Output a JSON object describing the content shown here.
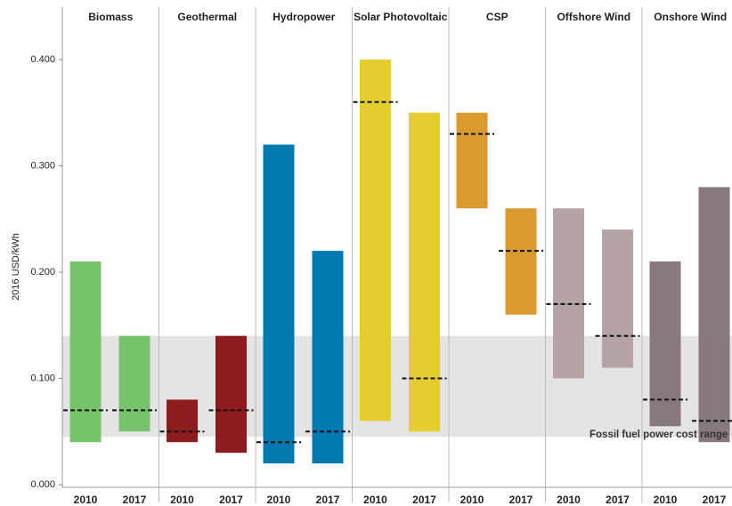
{
  "chart_data": {
    "type": "range_bar",
    "ylabel": "2016 USD/kWh",
    "ylim": [
      0,
      0.4
    ],
    "yticks": [
      {
        "value": 0,
        "label": "0.000"
      },
      {
        "value": 0.1,
        "label": "0.100"
      },
      {
        "value": 0.2,
        "label": "0.200"
      },
      {
        "value": 0.3,
        "label": "0.300"
      },
      {
        "value": 0.4,
        "label": "0.400"
      }
    ],
    "band": {
      "low": 0.045,
      "high": 0.14,
      "label": "Fossil fuel power cost range",
      "color": "#e4e4e4"
    },
    "groups": [
      {
        "name": "Biomass",
        "color": "#77c36a",
        "bars": [
          {
            "year": "2010",
            "low": 0.04,
            "high": 0.21,
            "avg": 0.07
          },
          {
            "year": "2017",
            "low": 0.05,
            "high": 0.14,
            "avg": 0.07
          }
        ]
      },
      {
        "name": "Geothermal",
        "color": "#8e1b1e",
        "bars": [
          {
            "year": "2010",
            "low": 0.04,
            "high": 0.08,
            "avg": 0.05
          },
          {
            "year": "2017",
            "low": 0.03,
            "high": 0.14,
            "avg": 0.07
          }
        ]
      },
      {
        "name": "Hydropower",
        "color": "#0079b0",
        "bars": [
          {
            "year": "2010",
            "low": 0.02,
            "high": 0.32,
            "avg": 0.04
          },
          {
            "year": "2017",
            "low": 0.02,
            "high": 0.22,
            "avg": 0.05
          }
        ]
      },
      {
        "name": "Solar Photovoltaic",
        "color": "#e3cd2f",
        "bars": [
          {
            "year": "2010",
            "low": 0.06,
            "high": 0.4,
            "avg": 0.36
          },
          {
            "year": "2017",
            "low": 0.05,
            "high": 0.35,
            "avg": 0.1
          }
        ]
      },
      {
        "name": "CSP",
        "color": "#db9a2f",
        "bars": [
          {
            "year": "2010",
            "low": 0.26,
            "high": 0.35,
            "avg": 0.33
          },
          {
            "year": "2017",
            "low": 0.16,
            "high": 0.26,
            "avg": 0.22
          }
        ]
      },
      {
        "name": "Offshore Wind",
        "color": "#b5a3a5",
        "bars": [
          {
            "year": "2010",
            "low": 0.1,
            "high": 0.26,
            "avg": 0.17
          },
          {
            "year": "2017",
            "low": 0.11,
            "high": 0.24,
            "avg": 0.14
          }
        ]
      },
      {
        "name": "Onshore Wind",
        "color": "#877a7d",
        "bars": [
          {
            "year": "2010",
            "low": 0.055,
            "high": 0.21,
            "avg": 0.08
          },
          {
            "year": "2017",
            "low": 0.04,
            "high": 0.28,
            "avg": 0.06
          }
        ]
      }
    ]
  }
}
